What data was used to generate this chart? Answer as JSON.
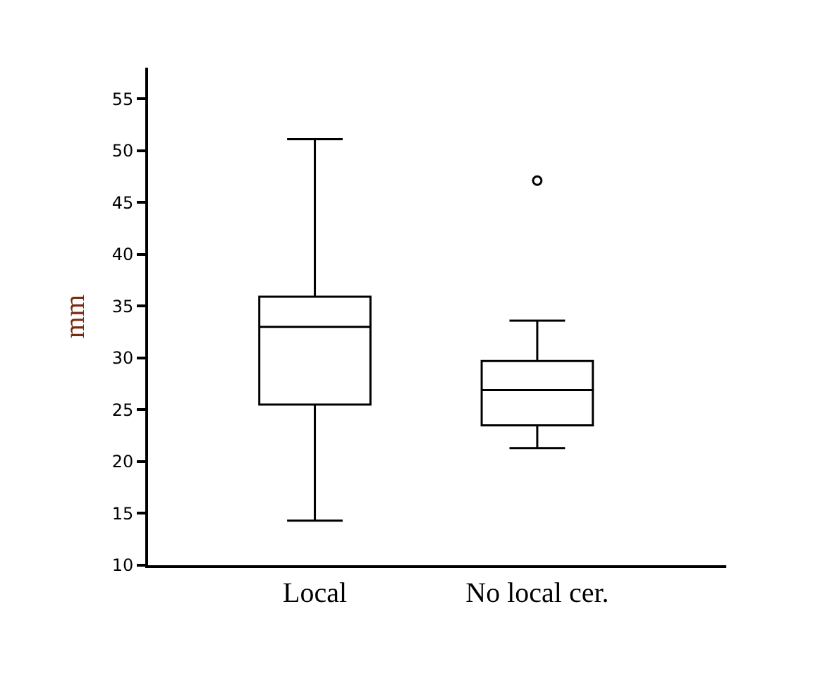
{
  "chart_data": {
    "type": "box",
    "ylabel": "mm",
    "categories": [
      "Local",
      "No local cer."
    ],
    "boxes": [
      {
        "low": 14.3,
        "q1": 25.5,
        "median": 33,
        "q3": 35.9,
        "high": 51.1
      },
      {
        "low": 21.3,
        "q1": 23.5,
        "median": 26.9,
        "q3": 29.7,
        "high": 33.6,
        "outliers": [
          47.1
        ]
      }
    ],
    "color": "#000000",
    "ylim": [
      10,
      58
    ],
    "yticks": [
      10,
      15,
      20,
      25,
      30,
      35,
      40,
      45,
      50,
      55
    ],
    "grid": false,
    "marker": "circle"
  }
}
